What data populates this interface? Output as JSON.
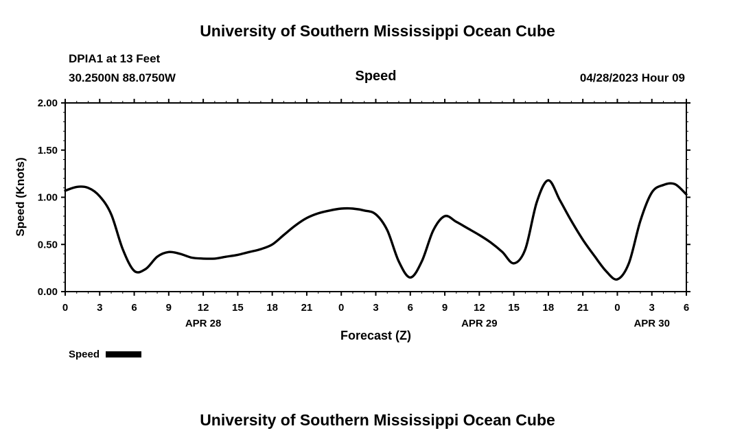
{
  "page": {
    "top_title": "University of Southern Mississippi Ocean Cube",
    "bottom_title": "University of Southern Mississippi Ocean Cube"
  },
  "header": {
    "station": "DPIA1 at 13 Feet",
    "coordinates": "30.2500N  88.0750W",
    "panel_title": "Speed",
    "run_datetime": "04/28/2023 Hour 09"
  },
  "legend": {
    "label": "Speed",
    "swatch_color": "#000000"
  },
  "chart_data": {
    "type": "line",
    "title": "Speed",
    "xlabel": "Forecast (Z)",
    "ylabel": "Speed (Knots)",
    "xlim": [
      0,
      54
    ],
    "ylim": [
      0.0,
      2.0
    ],
    "grid": false,
    "legend_position": "bottom-left",
    "yticks": [
      {
        "value": 0.0,
        "label": "0.00"
      },
      {
        "value": 0.5,
        "label": "0.50"
      },
      {
        "value": 1.0,
        "label": "1.00"
      },
      {
        "value": 1.5,
        "label": "1.50"
      },
      {
        "value": 2.0,
        "label": "2.00"
      }
    ],
    "xticks": [
      {
        "pos": 0,
        "label": "0"
      },
      {
        "pos": 3,
        "label": "3"
      },
      {
        "pos": 6,
        "label": "6"
      },
      {
        "pos": 9,
        "label": "9"
      },
      {
        "pos": 12,
        "label": "12"
      },
      {
        "pos": 15,
        "label": "15"
      },
      {
        "pos": 18,
        "label": "18"
      },
      {
        "pos": 21,
        "label": "21"
      },
      {
        "pos": 24,
        "label": "0"
      },
      {
        "pos": 27,
        "label": "3"
      },
      {
        "pos": 30,
        "label": "6"
      },
      {
        "pos": 33,
        "label": "9"
      },
      {
        "pos": 36,
        "label": "12"
      },
      {
        "pos": 39,
        "label": "15"
      },
      {
        "pos": 42,
        "label": "18"
      },
      {
        "pos": 45,
        "label": "21"
      },
      {
        "pos": 48,
        "label": "0"
      },
      {
        "pos": 51,
        "label": "3"
      },
      {
        "pos": 54,
        "label": "6"
      }
    ],
    "date_labels": [
      {
        "pos": 12,
        "label": "APR 28"
      },
      {
        "pos": 36,
        "label": "APR 29"
      },
      {
        "pos": 51,
        "label": "APR 30"
      }
    ],
    "series": [
      {
        "name": "Speed",
        "color": "#000000",
        "x": [
          0,
          1,
          2,
          3,
          4,
          5,
          6,
          7,
          8,
          9,
          10,
          11,
          12,
          13,
          14,
          15,
          16,
          17,
          18,
          19,
          20,
          21,
          22,
          23,
          24,
          25,
          26,
          27,
          28,
          29,
          30,
          31,
          32,
          33,
          34,
          35,
          36,
          37,
          38,
          39,
          40,
          41,
          42,
          43,
          44,
          45,
          46,
          47,
          48,
          49,
          50,
          51,
          52,
          53,
          54
        ],
        "values": [
          1.07,
          1.11,
          1.1,
          1.01,
          0.82,
          0.45,
          0.22,
          0.24,
          0.37,
          0.42,
          0.4,
          0.36,
          0.35,
          0.35,
          0.37,
          0.39,
          0.42,
          0.45,
          0.5,
          0.6,
          0.7,
          0.78,
          0.83,
          0.86,
          0.88,
          0.88,
          0.86,
          0.82,
          0.65,
          0.32,
          0.15,
          0.32,
          0.65,
          0.8,
          0.74,
          0.67,
          0.6,
          0.52,
          0.42,
          0.3,
          0.45,
          0.95,
          1.18,
          0.97,
          0.75,
          0.55,
          0.38,
          0.22,
          0.13,
          0.3,
          0.75,
          1.05,
          1.13,
          1.14,
          1.03
        ]
      }
    ]
  }
}
